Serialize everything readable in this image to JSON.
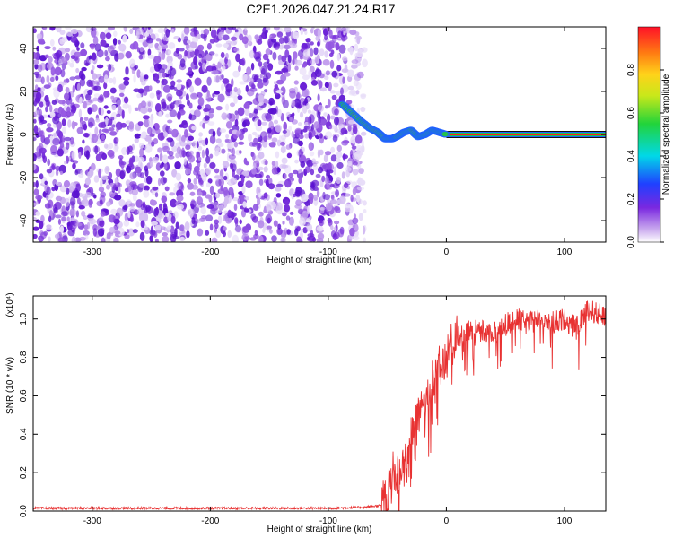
{
  "title": "C2E1.2026.047.21.24.R17",
  "colors": {
    "snr_line": "#e83232",
    "spectrogram_noise": "#6a1fd6",
    "track_core": "#ff2020",
    "track_mid": "#21c24a",
    "track_edge": "#2060ff"
  },
  "chart_data": [
    {
      "type": "heatmap",
      "title": "",
      "xlabel": "Height of straight line (km)",
      "ylabel": "Frequency (Hz)",
      "xlim": [
        -350,
        135
      ],
      "ylim": [
        -50,
        50
      ],
      "xticks": [
        -300,
        -200,
        -100,
        0,
        100
      ],
      "yticks": [
        -40,
        -20,
        0,
        20,
        40
      ],
      "grid": false,
      "colorbar": {
        "label": "Normalized spectral amplitude",
        "range": [
          0,
          1
        ],
        "ticks": [
          "0.0",
          "0.2",
          "0.4",
          "0.6",
          "0.8"
        ],
        "colormap": "white-purple-blue-cyan-green-yellow-orange-red"
      },
      "noise_region_x": [
        -350,
        -75
      ],
      "signal_track": {
        "x": [
          -88,
          -80,
          -72,
          -65,
          -58,
          -52,
          -46,
          -42,
          -36,
          -30,
          -24,
          -18,
          -12,
          -6,
          0,
          135
        ],
        "y": [
          14,
          10,
          6,
          3,
          1,
          -2,
          -2,
          -1,
          1,
          2,
          -1,
          0,
          2,
          1,
          0,
          0
        ]
      },
      "carrier_line": {
        "x": [
          0,
          135
        ],
        "y": 0
      }
    },
    {
      "type": "line",
      "title": "",
      "xlabel": "Height of straight line (km)",
      "ylabel": "SNR (10 * v/v)",
      "y_multiplier": "(x10⁴)",
      "xlim": [
        -350,
        135
      ],
      "ylim": [
        0,
        1.12
      ],
      "xticks": [
        -300,
        -200,
        -100,
        0,
        100
      ],
      "yticks": [
        "0.0",
        "0.2",
        "0.4",
        "0.6",
        "0.8",
        "1.0"
      ],
      "grid": false,
      "series": [
        {
          "x": [
            -350,
            -300,
            -250,
            -200,
            -150,
            -100,
            -70,
            -55,
            -50,
            -45,
            -40,
            -35,
            -30,
            -25,
            -20,
            -15,
            -10,
            -5,
            0,
            5,
            10,
            15,
            20,
            30,
            40,
            50,
            60,
            70,
            80,
            90,
            100,
            110,
            120,
            130,
            135
          ],
          "values": [
            0.015,
            0.015,
            0.015,
            0.015,
            0.015,
            0.015,
            0.02,
            0.03,
            0.08,
            0.2,
            0.16,
            0.25,
            0.4,
            0.45,
            0.55,
            0.6,
            0.7,
            0.75,
            0.8,
            0.85,
            0.95,
            0.97,
            0.93,
            0.95,
            0.92,
            0.97,
            1.0,
            0.97,
            1.02,
            0.98,
            1.0,
            0.95,
            1.05,
            1.02,
            1.0
          ]
        }
      ]
    }
  ]
}
